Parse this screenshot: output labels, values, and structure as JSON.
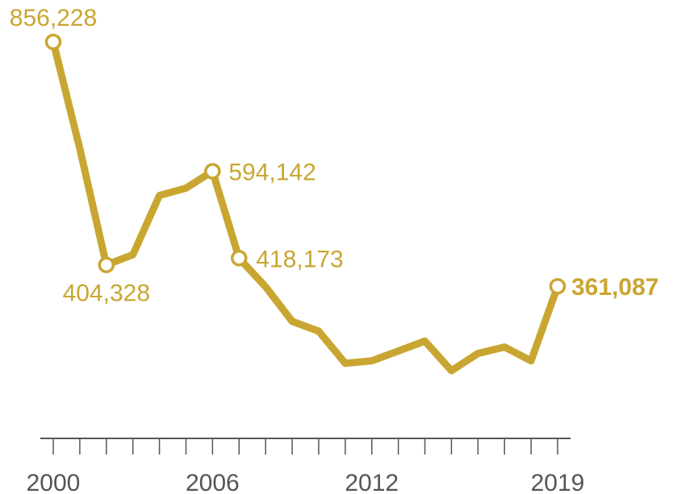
{
  "chart_data": {
    "type": "line",
    "title": "",
    "xlabel": "",
    "ylabel": "",
    "xlim": [
      2000,
      2019
    ],
    "ylim": [
      0,
      900000
    ],
    "grid": false,
    "legend": "none",
    "line_color": "#c9a631",
    "axis_color": "#555555",
    "tick_labels": [
      "2000",
      "2006",
      "2012",
      "2019"
    ],
    "series": [
      {
        "x": [
          2000,
          2001,
          2002,
          2003,
          2004,
          2005,
          2006,
          2007,
          2008,
          2009,
          2010,
          2011,
          2012,
          2013,
          2014,
          2015,
          2016,
          2017,
          2018,
          2019
        ],
        "y": [
          856228,
          640000,
          404328,
          425000,
          545000,
          560000,
          594142,
          418173,
          360000,
          290000,
          270000,
          205000,
          210000,
          230000,
          250000,
          190000,
          225000,
          238000,
          210000,
          361087
        ]
      }
    ],
    "annotations": [
      {
        "x": 2000,
        "value": 856228,
        "text": "856,228",
        "emphasis": false
      },
      {
        "x": 2002,
        "value": 404328,
        "text": "404,328",
        "emphasis": false
      },
      {
        "x": 2006,
        "value": 594142,
        "text": "594,142",
        "emphasis": false
      },
      {
        "x": 2007,
        "value": 418173,
        "text": "418,173",
        "emphasis": false
      },
      {
        "x": 2019,
        "value": 361087,
        "text": "361,087",
        "emphasis": true
      }
    ]
  }
}
